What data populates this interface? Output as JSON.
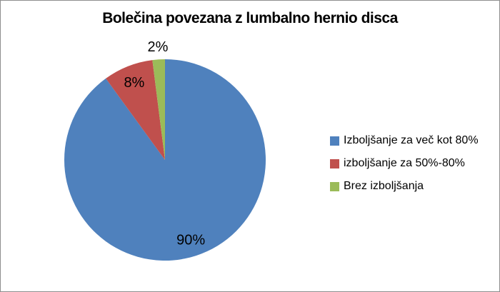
{
  "chart_data": {
    "type": "pie",
    "title": "Bolečina povezana z lumbalno hernio disca",
    "slices": [
      {
        "label": "Izboljšanje za več kot 80%",
        "value": 90,
        "percent_label": "90%",
        "color": "#4F81BD",
        "label_placement": "inside"
      },
      {
        "label": "izboljšanje za 50%-80%",
        "value": 8,
        "percent_label": "8%",
        "color": "#C0504D",
        "label_placement": "inside"
      },
      {
        "label": "Brez izboljšanja",
        "value": 2,
        "percent_label": "2%",
        "color": "#9BBB59",
        "label_placement": "outside"
      }
    ],
    "start_angle_deg": 0,
    "direction": "clockwise",
    "data_labels": "percent",
    "legend_position": "right",
    "text_color": "#000000",
    "background": "#FFFFFF",
    "frame_border_color": "#8E8E8E"
  }
}
